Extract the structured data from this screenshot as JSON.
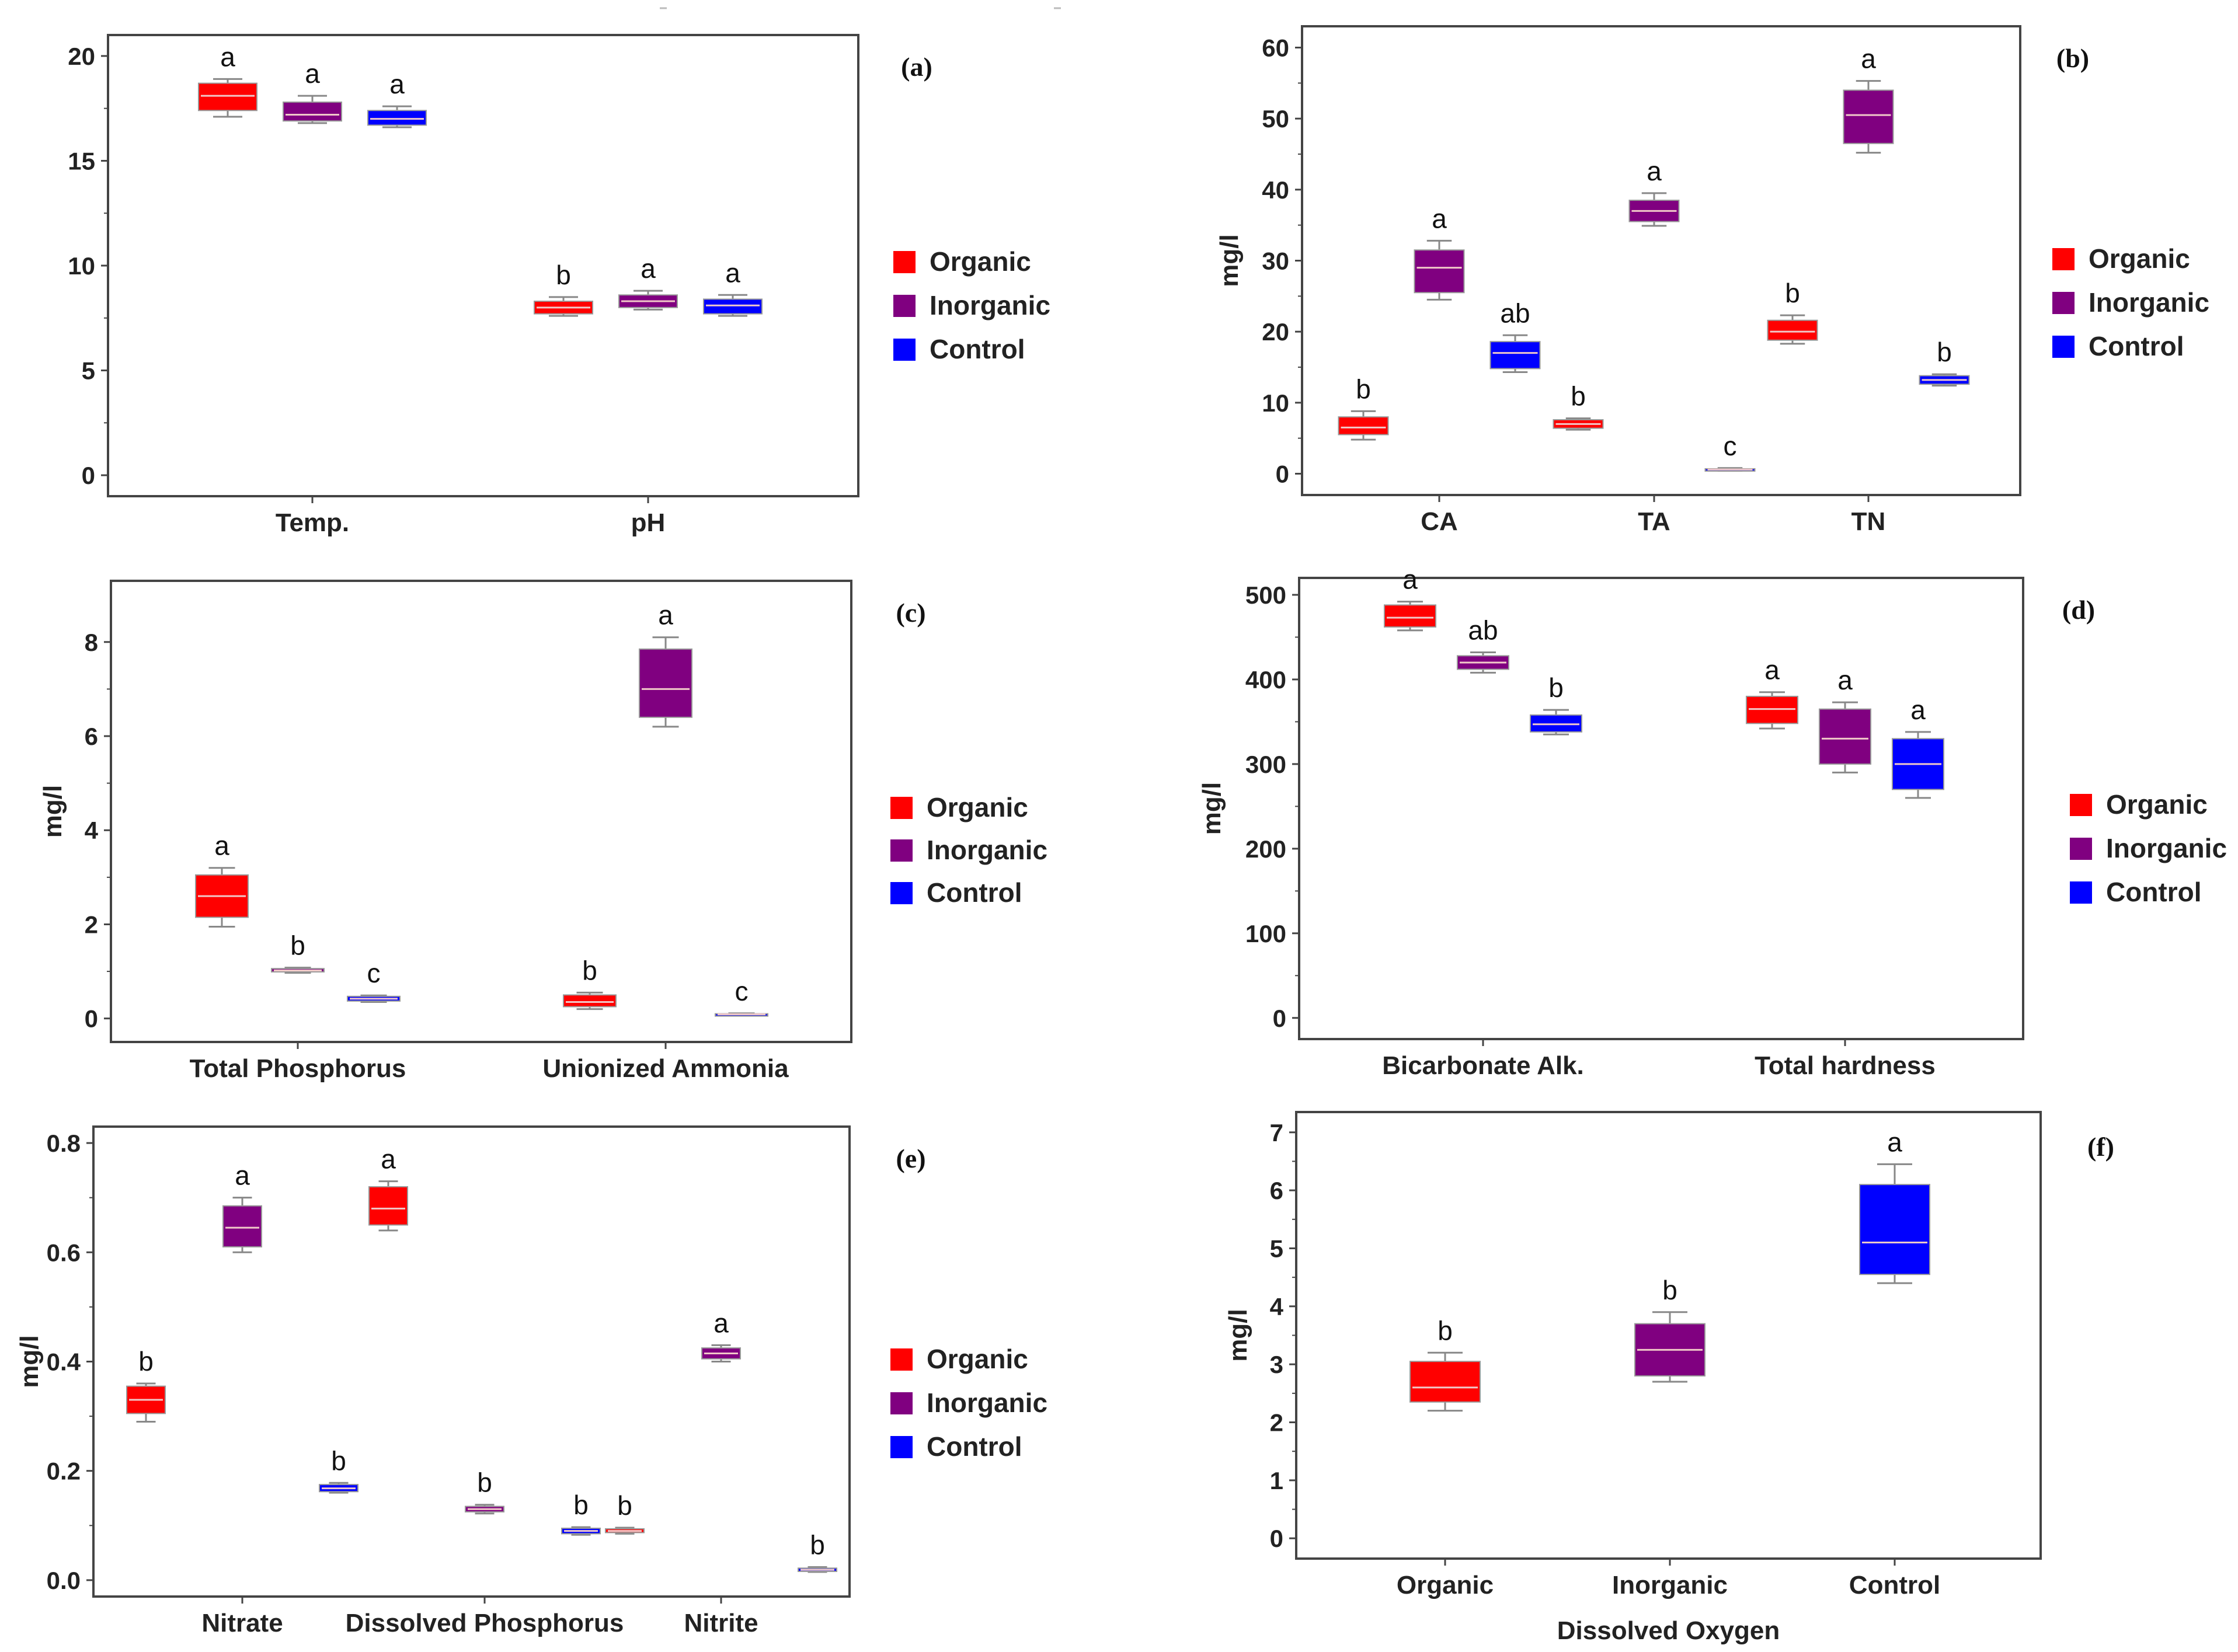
{
  "figure": {
    "description_free": true
  },
  "colors": {
    "Organic": "#ff0000",
    "Inorganic": "#800080",
    "Control": "#0000ff",
    "axis": "#444444",
    "whisker": "#888888",
    "median": "#f0c8c8"
  },
  "legend_labels": [
    "Organic",
    "Inorganic",
    "Control"
  ],
  "chart_data": [
    {
      "panel": "(a)",
      "type": "box",
      "ylabel": "",
      "xlabel": "",
      "ylim": [
        -1,
        21
      ],
      "yticks": [
        0,
        5,
        10,
        15,
        20
      ],
      "categories": [
        "Temp.",
        "pH"
      ],
      "boxes": [
        {
          "category": "Temp.",
          "series": "Organic",
          "min": 17.1,
          "q1": 17.4,
          "median": 18.1,
          "q3": 18.7,
          "max": 18.9,
          "letter": "a"
        },
        {
          "category": "Temp.",
          "series": "Inorganic",
          "min": 16.8,
          "q1": 16.9,
          "median": 17.2,
          "q3": 17.8,
          "max": 18.1,
          "letter": "a"
        },
        {
          "category": "Temp.",
          "series": "Control",
          "min": 16.6,
          "q1": 16.7,
          "median": 17.0,
          "q3": 17.4,
          "max": 17.6,
          "letter": "a"
        },
        {
          "category": "pH",
          "series": "Organic",
          "min": 7.6,
          "q1": 7.7,
          "median": 8.0,
          "q3": 8.3,
          "max": 8.5,
          "letter": "b"
        },
        {
          "category": "pH",
          "series": "Inorganic",
          "min": 7.9,
          "q1": 8.0,
          "median": 8.3,
          "q3": 8.6,
          "max": 8.8,
          "letter": "a"
        },
        {
          "category": "pH",
          "series": "Control",
          "min": 7.6,
          "q1": 7.7,
          "median": 8.1,
          "q3": 8.4,
          "max": 8.6,
          "letter": "a"
        }
      ]
    },
    {
      "panel": "(b)",
      "type": "box",
      "ylabel": "mg/l",
      "xlabel": "",
      "ylim": [
        -3,
        63
      ],
      "yticks": [
        0,
        10,
        20,
        30,
        40,
        50,
        60
      ],
      "categories": [
        "CA",
        "TA",
        "TN"
      ],
      "boxes": [
        {
          "category": "CA",
          "series": "Organic",
          "min": 4.8,
          "q1": 5.5,
          "median": 6.5,
          "q3": 8.0,
          "max": 8.8,
          "letter": "b"
        },
        {
          "category": "CA",
          "series": "Inorganic",
          "min": 24.5,
          "q1": 25.5,
          "median": 29.0,
          "q3": 31.5,
          "max": 32.8,
          "letter": "a"
        },
        {
          "category": "CA",
          "series": "Control",
          "min": 14.3,
          "q1": 14.8,
          "median": 17.0,
          "q3": 18.6,
          "max": 19.5,
          "letter": "ab"
        },
        {
          "category": "TA",
          "series": "Organic",
          "min": 6.2,
          "q1": 6.4,
          "median": 7.0,
          "q3": 7.6,
          "max": 7.8,
          "letter": "b"
        },
        {
          "category": "TA",
          "series": "Inorganic",
          "min": 34.9,
          "q1": 35.5,
          "median": 37.0,
          "q3": 38.5,
          "max": 39.5,
          "letter": "a"
        },
        {
          "category": "TA",
          "series": "Control",
          "min": 0.4,
          "q1": 0.5,
          "median": 0.6,
          "q3": 0.7,
          "max": 0.8,
          "letter": "c"
        },
        {
          "category": "TN",
          "series": "Organic",
          "min": 18.3,
          "q1": 18.8,
          "median": 20.0,
          "q3": 21.6,
          "max": 22.3,
          "letter": "b"
        },
        {
          "category": "TN",
          "series": "Inorganic",
          "min": 45.2,
          "q1": 46.5,
          "median": 50.5,
          "q3": 54.0,
          "max": 55.3,
          "letter": "a"
        },
        {
          "category": "TN",
          "series": "Control",
          "min": 12.4,
          "q1": 12.6,
          "median": 13.2,
          "q3": 13.8,
          "max": 14.0,
          "letter": "b"
        }
      ]
    },
    {
      "panel": "(c)",
      "type": "box",
      "ylabel": "mg/l",
      "xlabel": "",
      "ylim": [
        -0.5,
        9.3
      ],
      "yticks": [
        0,
        2,
        4,
        6,
        8
      ],
      "categories": [
        "Total Phosphorus",
        "Unionized Ammonia"
      ],
      "boxes": [
        {
          "category": "Total Phosphorus",
          "series": "Organic",
          "min": 1.95,
          "q1": 2.15,
          "median": 2.6,
          "q3": 3.05,
          "max": 3.2,
          "letter": "a"
        },
        {
          "category": "Total Phosphorus",
          "series": "Inorganic",
          "min": 0.97,
          "q1": 0.99,
          "median": 1.02,
          "q3": 1.06,
          "max": 1.08,
          "letter": "b"
        },
        {
          "category": "Total Phosphorus",
          "series": "Control",
          "min": 0.35,
          "q1": 0.37,
          "median": 0.42,
          "q3": 0.47,
          "max": 0.49,
          "letter": "c"
        },
        {
          "category": "Unionized Ammonia",
          "series": "Organic",
          "min": 0.2,
          "q1": 0.25,
          "median": 0.35,
          "q3": 0.5,
          "max": 0.55,
          "letter": "b"
        },
        {
          "category": "Unionized Ammonia",
          "series": "Inorganic",
          "min": 6.2,
          "q1": 6.4,
          "median": 7.0,
          "q3": 7.85,
          "max": 8.1,
          "letter": "a"
        },
        {
          "category": "Unionized Ammonia",
          "series": "Control",
          "min": 0.07,
          "q1": 0.08,
          "median": 0.09,
          "q3": 0.1,
          "max": 0.11,
          "letter": "c"
        }
      ]
    },
    {
      "panel": "(d)",
      "type": "box",
      "ylabel": "mg/l",
      "xlabel": "",
      "ylim": [
        -25,
        520
      ],
      "yticks": [
        0,
        100,
        200,
        300,
        400,
        500
      ],
      "categories": [
        "Bicarbonate Alk.",
        "Total hardness"
      ],
      "boxes": [
        {
          "category": "Bicarbonate Alk.",
          "series": "Organic",
          "min": 458,
          "q1": 462,
          "median": 473,
          "q3": 488,
          "max": 492,
          "letter": "a"
        },
        {
          "category": "Bicarbonate Alk.",
          "series": "Inorganic",
          "min": 408,
          "q1": 412,
          "median": 420,
          "q3": 428,
          "max": 432,
          "letter": "ab"
        },
        {
          "category": "Bicarbonate Alk.",
          "series": "Control",
          "min": 335,
          "q1": 338,
          "median": 347,
          "q3": 358,
          "max": 364,
          "letter": "b"
        },
        {
          "category": "Total hardness",
          "series": "Organic",
          "min": 342,
          "q1": 348,
          "median": 365,
          "q3": 380,
          "max": 385,
          "letter": "a"
        },
        {
          "category": "Total hardness",
          "series": "Inorganic",
          "min": 290,
          "q1": 300,
          "median": 330,
          "q3": 365,
          "max": 373,
          "letter": "a"
        },
        {
          "category": "Total hardness",
          "series": "Control",
          "min": 260,
          "q1": 270,
          "median": 300,
          "q3": 330,
          "max": 338,
          "letter": "a"
        }
      ]
    },
    {
      "panel": "(e)",
      "type": "box",
      "ylabel": "mg/l",
      "xlabel": "",
      "ylim": [
        -0.03,
        0.83
      ],
      "yticks": [
        0.0,
        0.2,
        0.4,
        0.6,
        0.8
      ],
      "ytick_labels": [
        "0.0",
        "0.2",
        "0.4",
        "0.6",
        "0.8"
      ],
      "categories": [
        "Nitrate",
        "Dissolved Phosphorus",
        "Nitrite"
      ],
      "boxes": [
        {
          "category": "Nitrate",
          "series": "Organic",
          "min": 0.29,
          "q1": 0.305,
          "median": 0.33,
          "q3": 0.355,
          "max": 0.36,
          "letter": "b"
        },
        {
          "category": "Nitrate",
          "series": "Inorganic",
          "min": 0.6,
          "q1": 0.61,
          "median": 0.645,
          "q3": 0.685,
          "max": 0.7,
          "letter": "a"
        },
        {
          "category": "Nitrate",
          "series": "Control",
          "min": 0.16,
          "q1": 0.162,
          "median": 0.168,
          "q3": 0.175,
          "max": 0.178,
          "letter": "b"
        },
        {
          "category": "Dissolved Phosphorus",
          "series": "Organic",
          "min": 0.64,
          "q1": 0.65,
          "median": 0.68,
          "q3": 0.72,
          "max": 0.73,
          "letter": "a"
        },
        {
          "category": "Dissolved Phosphorus",
          "series": "Inorganic",
          "min": 0.122,
          "q1": 0.125,
          "median": 0.13,
          "q3": 0.135,
          "max": 0.138,
          "letter": "b"
        },
        {
          "category": "Dissolved Phosphorus",
          "series": "Control",
          "min": 0.083,
          "q1": 0.085,
          "median": 0.09,
          "q3": 0.095,
          "max": 0.097,
          "letter": "b"
        },
        {
          "category": "Nitrite",
          "series": "Organic",
          "min": 0.085,
          "q1": 0.087,
          "median": 0.09,
          "q3": 0.094,
          "max": 0.096,
          "letter": "b"
        },
        {
          "category": "Nitrite",
          "series": "Inorganic",
          "min": 0.4,
          "q1": 0.405,
          "median": 0.415,
          "q3": 0.425,
          "max": 0.43,
          "letter": "a"
        },
        {
          "category": "Nitrite",
          "series": "Control",
          "min": 0.015,
          "q1": 0.016,
          "median": 0.019,
          "q3": 0.022,
          "max": 0.024,
          "letter": "b"
        }
      ]
    },
    {
      "panel": "(f)",
      "type": "box",
      "ylabel": "mg/l",
      "xlabel": "Dissolved Oxygen",
      "ylim": [
        -0.35,
        7.35
      ],
      "yticks": [
        0,
        1,
        2,
        3,
        4,
        5,
        6,
        7
      ],
      "categories": [
        "Organic",
        "Inorganic",
        "Control"
      ],
      "boxes": [
        {
          "category": "Organic",
          "series": "Organic",
          "min": 2.2,
          "q1": 2.35,
          "median": 2.6,
          "q3": 3.05,
          "max": 3.2,
          "letter": "b"
        },
        {
          "category": "Inorganic",
          "series": "Inorganic",
          "min": 2.7,
          "q1": 2.8,
          "median": 3.25,
          "q3": 3.7,
          "max": 3.9,
          "letter": "b"
        },
        {
          "category": "Control",
          "series": "Control",
          "min": 4.4,
          "q1": 4.55,
          "median": 5.1,
          "q3": 6.1,
          "max": 6.45,
          "letter": "a"
        }
      ]
    }
  ]
}
